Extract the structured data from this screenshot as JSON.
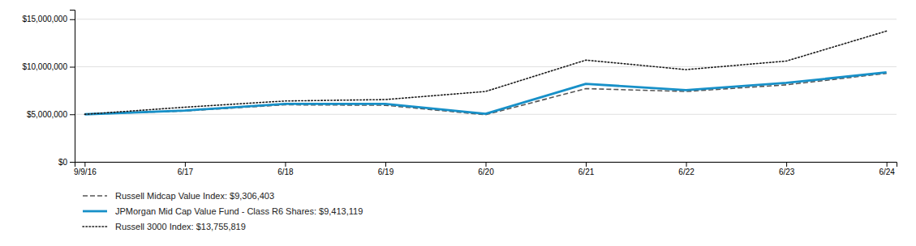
{
  "chart_data": {
    "type": "line",
    "categories": [
      "9/9/16",
      "6/17",
      "6/18",
      "6/19",
      "6/20",
      "6/21",
      "6/22",
      "6/23",
      "6/24"
    ],
    "series": [
      {
        "name": "Russell Midcap Value Index: $9,306,403",
        "color": "#555555",
        "line_style": "dashed",
        "values": [
          5000000,
          5350000,
          6000000,
          5950000,
          4950000,
          7700000,
          7400000,
          8100000,
          9306403
        ]
      },
      {
        "name": "JPMorgan Mid Cap Value Fund - Class R6 Shares: $9,413,119",
        "color": "#1790c8",
        "line_style": "solid",
        "values": [
          5000000,
          5400000,
          6100000,
          6100000,
          5050000,
          8200000,
          7550000,
          8300000,
          9413119
        ]
      },
      {
        "name": "Russell 3000 Index: $13,755,819",
        "color": "#1a1a1a",
        "line_style": "dotted",
        "values": [
          5000000,
          5750000,
          6400000,
          6550000,
          7400000,
          10700000,
          9700000,
          10600000,
          13755819
        ]
      }
    ],
    "ylim": [
      0,
      16000000
    ],
    "yticks": [
      {
        "value": 0,
        "label": "$0"
      },
      {
        "value": 5000000,
        "label": "$5,000,000"
      },
      {
        "value": 10000000,
        "label": "$10,000,000"
      },
      {
        "value": 15000000,
        "label": "$15,000,000"
      }
    ],
    "grid": true,
    "legend": "bottom"
  }
}
